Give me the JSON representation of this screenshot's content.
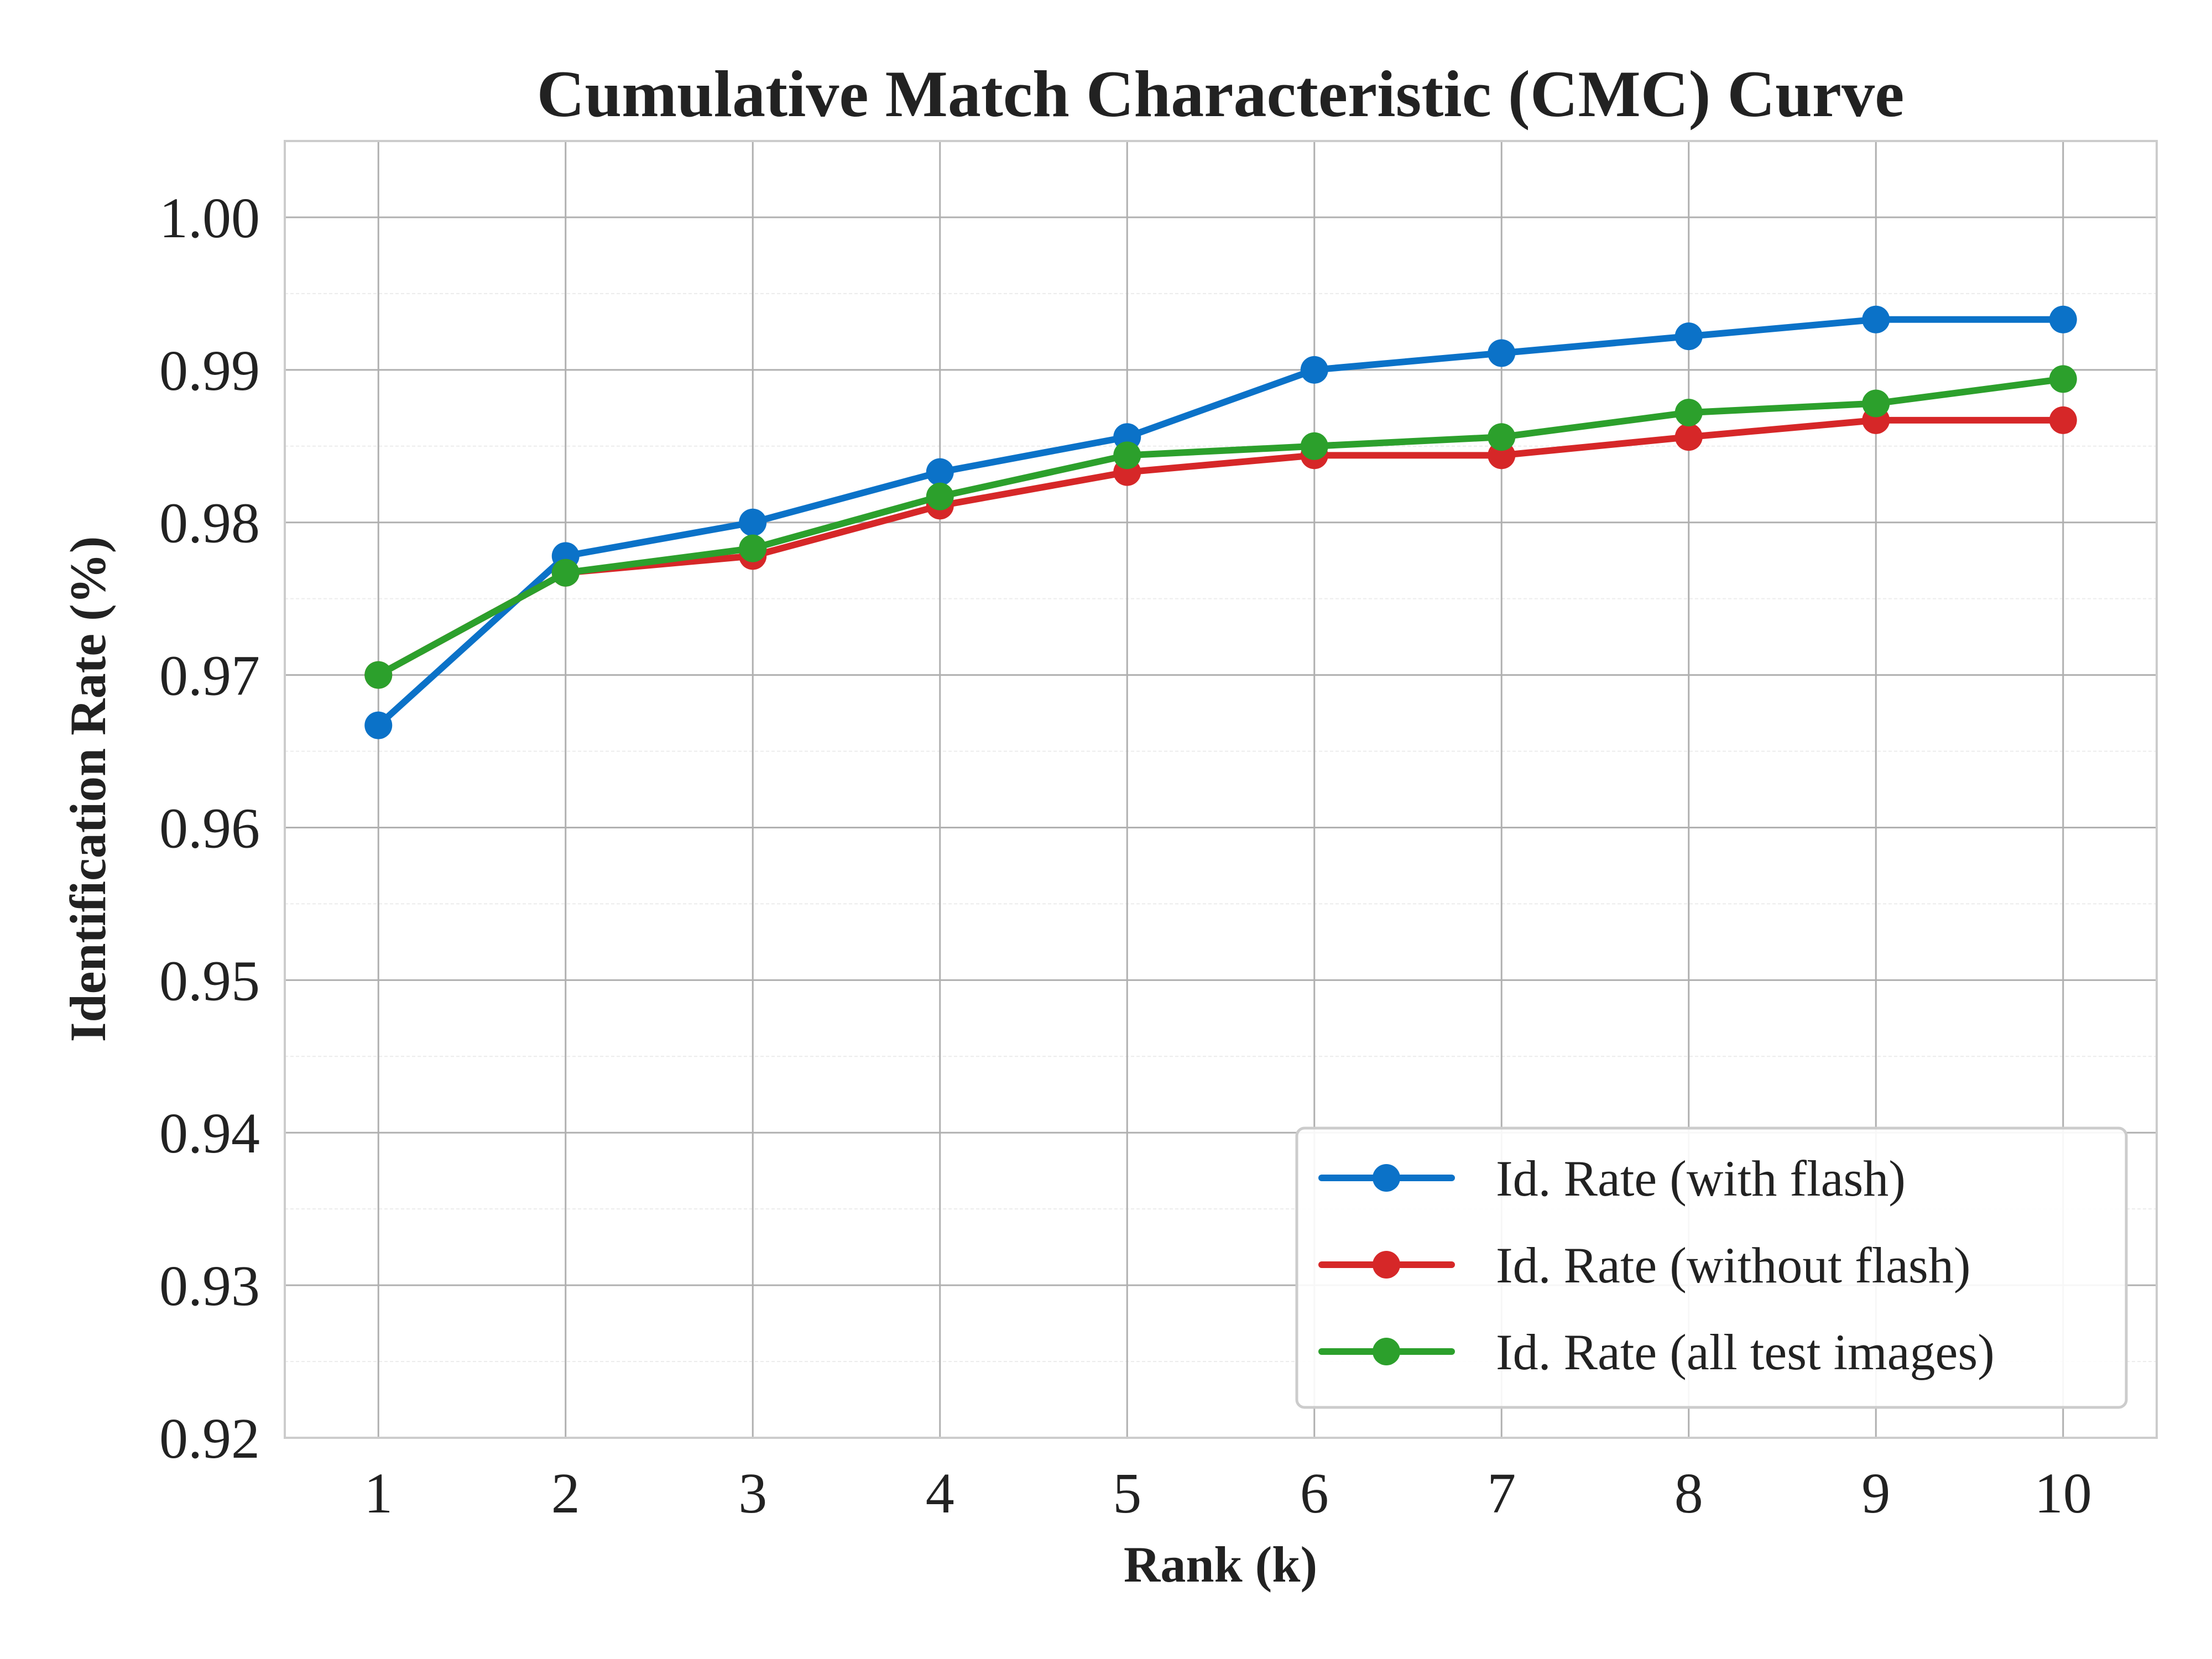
{
  "chart_data": {
    "type": "line",
    "title": "Cumulative Match Characteristic (CMC) Curve",
    "xlabel": "Rank (k)",
    "ylabel": "Identification Rate (%)",
    "x": [
      1,
      2,
      3,
      4,
      5,
      6,
      7,
      8,
      9,
      10
    ],
    "xticks": [
      "1",
      "2",
      "3",
      "4",
      "5",
      "6",
      "7",
      "8",
      "9",
      "10"
    ],
    "yticks": [
      "0.92",
      "0.93",
      "0.94",
      "0.95",
      "0.96",
      "0.97",
      "0.98",
      "0.99",
      "1.00"
    ],
    "xlim": [
      0.5,
      10.5
    ],
    "ylim": [
      0.92,
      1.005
    ],
    "grid": true,
    "legend_position": "lower-right",
    "series": [
      {
        "name": "Id. Rate (with flash)",
        "color": "#0b72c8",
        "values": [
          0.9667,
          0.9778,
          0.98,
          0.9833,
          0.9856,
          0.99,
          0.9911,
          0.9922,
          0.9933,
          0.9933
        ]
      },
      {
        "name": "Id. Rate (without flash)",
        "color": "#d62728",
        "values": [
          0.97,
          0.9767,
          0.9778,
          0.9811,
          0.9833,
          0.9844,
          0.9844,
          0.9856,
          0.9867,
          0.9867
        ]
      },
      {
        "name": "Id. Rate (all test images)",
        "color": "#2ca02c",
        "values": [
          0.97,
          0.9767,
          0.9783,
          0.9817,
          0.9844,
          0.985,
          0.9856,
          0.9872,
          0.9878,
          0.9894
        ]
      }
    ]
  }
}
